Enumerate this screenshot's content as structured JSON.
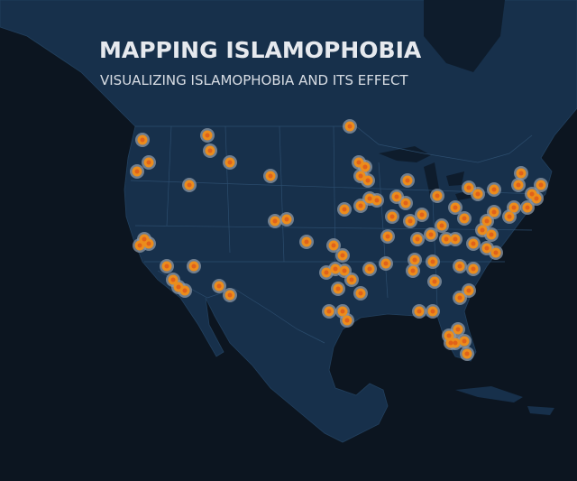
{
  "header": {
    "title": "MAPPING ISLAMOPHOBIA",
    "subtitle": "VISUALIZING ISLAMOPHOBIA AND ITS EFFECT"
  }
}
